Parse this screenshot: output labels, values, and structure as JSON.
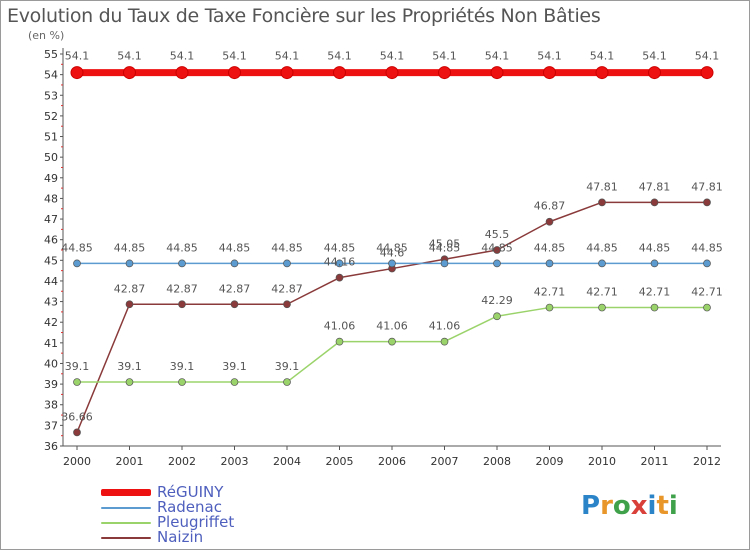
{
  "header": {
    "title": "Evolution du Taux de Taxe Foncière sur les Propriétés Non Bâties",
    "unit": "(en %)"
  },
  "logo": {
    "text": "Proxiti"
  },
  "chart_data": {
    "type": "line",
    "title": "Evolution du Taux de Taxe Foncière sur les Propriétés Non Bâties",
    "ylabel": "(en %)",
    "xlabel": "",
    "ylim": [
      36,
      55
    ],
    "grid": false,
    "legend": "bottom-left",
    "x": [
      2000,
      2001,
      2002,
      2003,
      2004,
      2005,
      2006,
      2007,
      2008,
      2009,
      2010,
      2011,
      2012
    ],
    "yticks": [
      36,
      37,
      38,
      39,
      40,
      41,
      42,
      43,
      44,
      45,
      46,
      47,
      48,
      49,
      50,
      51,
      52,
      53,
      54,
      55
    ],
    "series": [
      {
        "name": "RéGUINY",
        "color": "#ee1111",
        "values": [
          54.1,
          54.1,
          54.1,
          54.1,
          54.1,
          54.1,
          54.1,
          54.1,
          54.1,
          54.1,
          54.1,
          54.1,
          54.1
        ],
        "labels": [
          "54.1",
          "54.1",
          "54.1",
          "54.1",
          "54.1",
          "54.1",
          "54.1",
          "54.1",
          "54.1",
          "54.1",
          "54.1",
          "54.1",
          "54.1"
        ]
      },
      {
        "name": "Radenac",
        "color": "#5b9bd0",
        "values": [
          44.85,
          44.85,
          44.85,
          44.85,
          44.85,
          44.85,
          44.85,
          44.85,
          44.85,
          44.85,
          44.85,
          44.85,
          44.85
        ],
        "labels": [
          "44.85",
          "44.85",
          "44.85",
          "44.85",
          "44.85",
          "44.85",
          "44.85",
          "44.85",
          "44.85",
          "44.85",
          "44.85",
          "44.85",
          "44.85"
        ]
      },
      {
        "name": "Pleugriffet",
        "color": "#9bd36b",
        "values": [
          39.1,
          39.1,
          39.1,
          39.1,
          39.1,
          41.06,
          41.06,
          41.06,
          42.29,
          42.71,
          42.71,
          42.71,
          42.71
        ],
        "labels": [
          "39.1",
          "39.1",
          "39.1",
          "39.1",
          "39.1",
          "41.06",
          "41.06",
          "41.06",
          "42.29",
          "42.71",
          "42.71",
          "42.71",
          "42.71"
        ]
      },
      {
        "name": "Naizin",
        "color": "#8a3a3a",
        "values": [
          36.66,
          42.87,
          42.87,
          42.87,
          42.87,
          44.16,
          44.6,
          45.05,
          45.5,
          46.87,
          47.81,
          47.81,
          47.81
        ],
        "labels": [
          "36.66",
          "42.87",
          "42.87",
          "42.87",
          "42.87",
          "44.16",
          "44.6",
          "45.05",
          "45.5",
          "46.87",
          "47.81",
          "47.81",
          "47.81"
        ]
      }
    ]
  }
}
